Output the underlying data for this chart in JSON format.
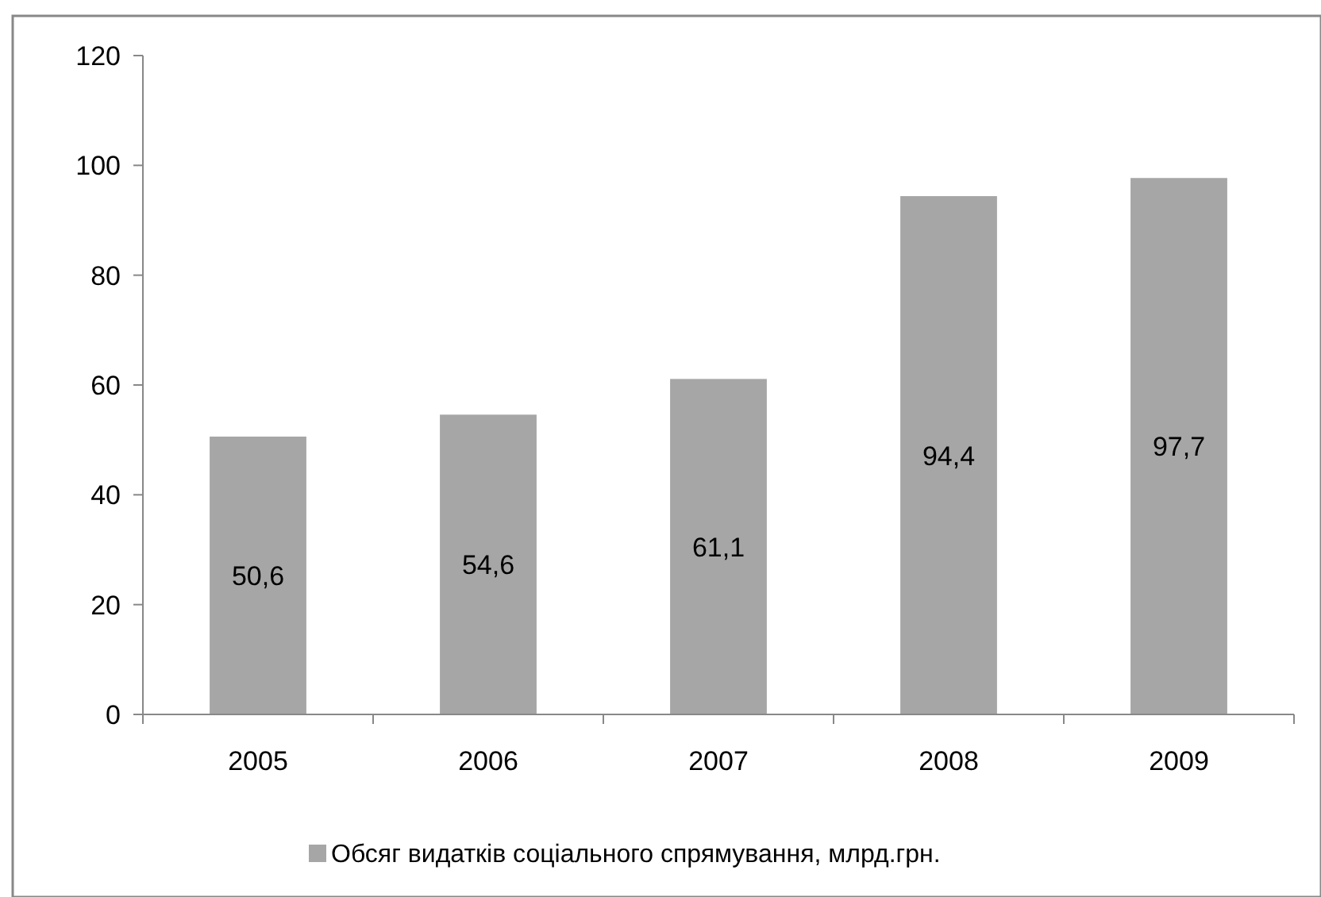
{
  "chart_data": {
    "type": "bar",
    "categories": [
      "2005",
      "2006",
      "2007",
      "2008",
      "2009"
    ],
    "series": [
      {
        "name": "Обсяг видатків соціального спрямування, млрд.грн.",
        "color": "#a6a6a6",
        "values": [
          50.6,
          54.6,
          61.1,
          94.4,
          97.7
        ],
        "value_labels": [
          "50,6",
          "54,6",
          "61,1",
          "94,4",
          "97,7"
        ]
      }
    ],
    "ylim": [
      0,
      120
    ],
    "yticks": [
      0,
      20,
      40,
      60,
      80,
      100,
      120
    ],
    "legend": "bottom"
  }
}
